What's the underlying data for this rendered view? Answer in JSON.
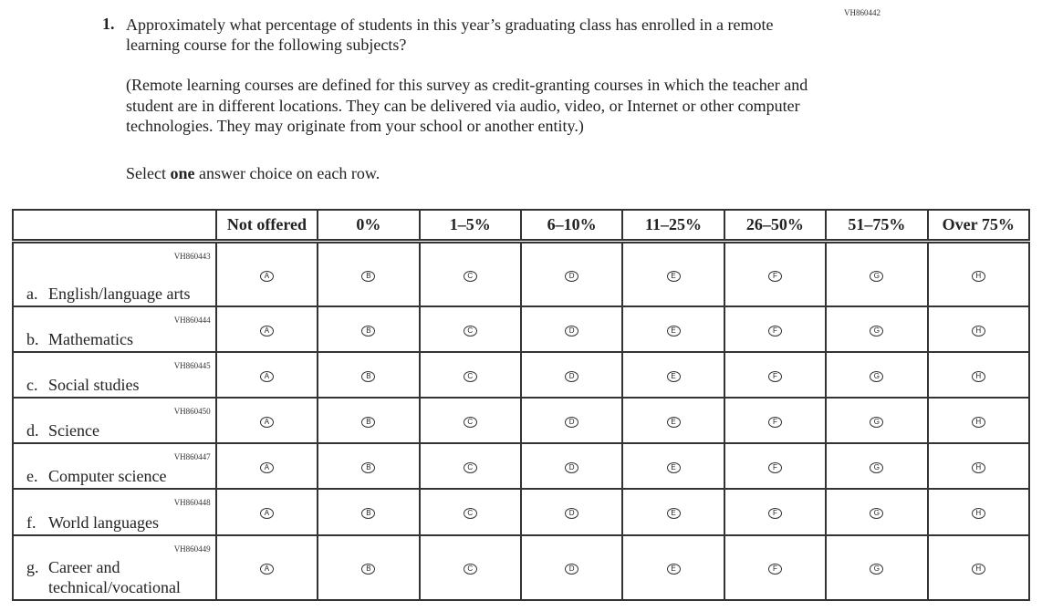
{
  "page_code": "VH860442",
  "question": {
    "number": "1.",
    "text": "Approximately what percentage of students in this year’s graduating class has enrolled in a remote learning course for the following subjects?",
    "definition": "(Remote learning courses are defined for this survey as credit-granting courses in which the teacher and student are in different locations. They can be delivered via audio, video, or Internet or other computer technologies. They may originate from your school or another entity.)",
    "instruction_pre": "Select ",
    "instruction_bold": "one",
    "instruction_post": " answer choice on each row."
  },
  "columns": [
    "Not offered",
    "0%",
    "1–5%",
    "6–10%",
    "11–25%",
    "26–50%",
    "51–75%",
    "Over 75%"
  ],
  "bubbles": [
    "A",
    "B",
    "C",
    "D",
    "E",
    "F",
    "G",
    "H"
  ],
  "rows": [
    {
      "code": "VH860443",
      "letter": "a.",
      "label": "English/language arts"
    },
    {
      "code": "VH860444",
      "letter": "b.",
      "label": "Mathematics"
    },
    {
      "code": "VH860445",
      "letter": "c.",
      "label": "Social studies"
    },
    {
      "code": "VH860450",
      "letter": "d.",
      "label": "Science"
    },
    {
      "code": "VH860447",
      "letter": "e.",
      "label": "Computer science"
    },
    {
      "code": "VH860448",
      "letter": "f.",
      "label": "World languages"
    },
    {
      "code": "VH860449",
      "letter": "g.",
      "label": "Career and technical/vocational"
    }
  ]
}
